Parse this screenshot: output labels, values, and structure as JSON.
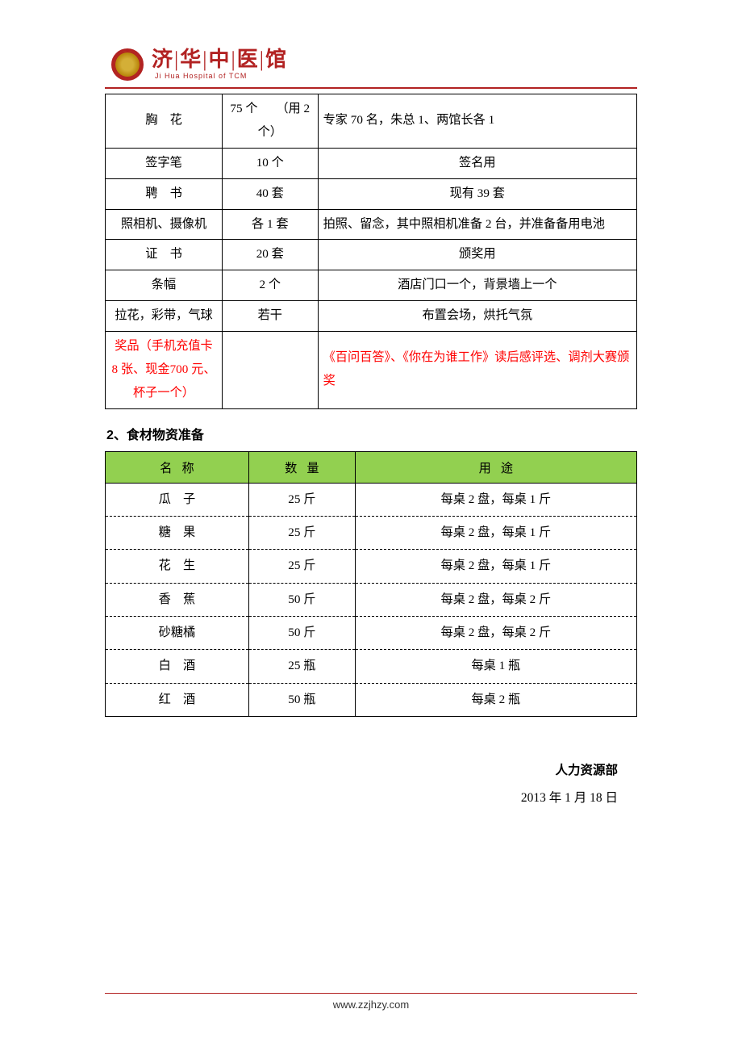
{
  "logo": {
    "cn": "济|华|中|医|馆",
    "en": "Ji Hua Hospital of TCM"
  },
  "table1": {
    "rows": [
      {
        "name": "胸　花",
        "qty": "75 个　　（用 2 个）",
        "use": "专家 70 名，朱总 1、两馆长各 1",
        "use_align": "left",
        "red": false,
        "qty_align": "left"
      },
      {
        "name": "签字笔",
        "qty": "10 个",
        "use": "签名用",
        "use_align": "center",
        "red": false,
        "qty_align": "center"
      },
      {
        "name": "聘　书",
        "qty": "40 套",
        "use": "现有 39 套",
        "use_align": "center",
        "red": false,
        "qty_align": "center"
      },
      {
        "name": "照相机、摄像机",
        "qty": "各 1 套",
        "use": "拍照、留念，其中照相机准备 2 台，并准备备用电池",
        "use_align": "left",
        "red": false,
        "qty_align": "center"
      },
      {
        "name": "证　书",
        "qty": "20 套",
        "use": "颁奖用",
        "use_align": "center",
        "red": false,
        "qty_align": "center"
      },
      {
        "name": "条幅",
        "qty": "2 个",
        "use": "酒店门口一个，背景墙上一个",
        "use_align": "center",
        "red": false,
        "qty_align": "center"
      },
      {
        "name": "拉花，彩带，气球",
        "qty": "若干",
        "use": "布置会场，烘托气氛",
        "use_align": "center",
        "red": false,
        "qty_align": "center"
      },
      {
        "name": "奖品（手机充值卡 8 张、现金700 元、杯子一个）",
        "qty": "",
        "use": "《百问百答》、《你在为谁工作》读后感评选、调剂大赛颁奖",
        "use_align": "left",
        "red": true,
        "qty_align": "center"
      }
    ]
  },
  "section2_title": "2、食材物资准备",
  "table2": {
    "headers": {
      "a": "名称",
      "b": "数量",
      "c": "用途"
    },
    "rows": [
      {
        "name": "瓜　子",
        "qty": "25 斤",
        "use": "每桌 2 盘，每桌 1 斤"
      },
      {
        "name": "糖　果",
        "qty": "25 斤",
        "use": "每桌 2 盘，每桌 1 斤"
      },
      {
        "name": "花　生",
        "qty": "25 斤",
        "use": "每桌 2 盘，每桌 1 斤"
      },
      {
        "name": "香　蕉",
        "qty": "50 斤",
        "use": "每桌 2 盘，每桌 2 斤"
      },
      {
        "name": "砂糖橘",
        "qty": "50 斤",
        "use": "每桌 2 盘，每桌 2 斤"
      },
      {
        "name": "白　酒",
        "qty": "25 瓶",
        "use": "每桌 1 瓶"
      },
      {
        "name": "红　酒",
        "qty": "50 瓶",
        "use": "每桌 2 瓶"
      }
    ]
  },
  "signature": {
    "department": "人力资源部",
    "date": "2013 年 1 月 18 日"
  },
  "footer_url": "www.zzjhzy.com",
  "colors": {
    "brand_red": "#b22222",
    "table_header_green": "#92d050",
    "highlight_red": "#ff0000"
  }
}
